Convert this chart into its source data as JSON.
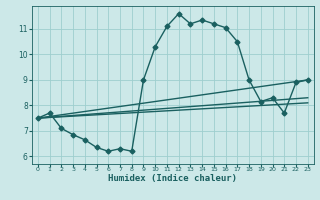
{
  "title": "",
  "xlabel": "Humidex (Indice chaleur)",
  "bg_color": "#cce8e8",
  "grid_color": "#9ecece",
  "line_color": "#1a6060",
  "xlim": [
    -0.5,
    23.5
  ],
  "ylim": [
    5.7,
    11.9
  ],
  "xticks": [
    0,
    1,
    2,
    3,
    4,
    5,
    6,
    7,
    8,
    9,
    10,
    11,
    12,
    13,
    14,
    15,
    16,
    17,
    18,
    19,
    20,
    21,
    22,
    23
  ],
  "yticks": [
    6,
    7,
    8,
    9,
    10,
    11
  ],
  "series": [
    {
      "x": [
        0,
        1,
        2,
        3,
        4,
        5,
        6,
        7,
        8,
        9,
        10,
        11,
        12,
        13,
        14,
        15,
        16,
        17,
        18,
        19,
        20,
        21,
        22,
        23
      ],
      "y": [
        7.5,
        7.7,
        7.1,
        6.85,
        6.65,
        6.35,
        6.2,
        6.3,
        6.2,
        9.0,
        10.3,
        11.1,
        11.6,
        11.2,
        11.35,
        11.2,
        11.05,
        10.5,
        9.0,
        8.15,
        8.3,
        7.7,
        8.9,
        9.0
      ],
      "marker": "D",
      "markersize": 2.5,
      "linewidth": 1.0,
      "has_marker": true
    },
    {
      "x": [
        0,
        23
      ],
      "y": [
        7.5,
        9.0
      ],
      "marker": null,
      "markersize": 0,
      "linewidth": 1.0,
      "has_marker": false
    },
    {
      "x": [
        0,
        23
      ],
      "y": [
        7.5,
        8.3
      ],
      "marker": null,
      "markersize": 0,
      "linewidth": 1.0,
      "has_marker": false
    },
    {
      "x": [
        0,
        23
      ],
      "y": [
        7.5,
        8.1
      ],
      "marker": null,
      "markersize": 0,
      "linewidth": 1.0,
      "has_marker": false
    }
  ]
}
